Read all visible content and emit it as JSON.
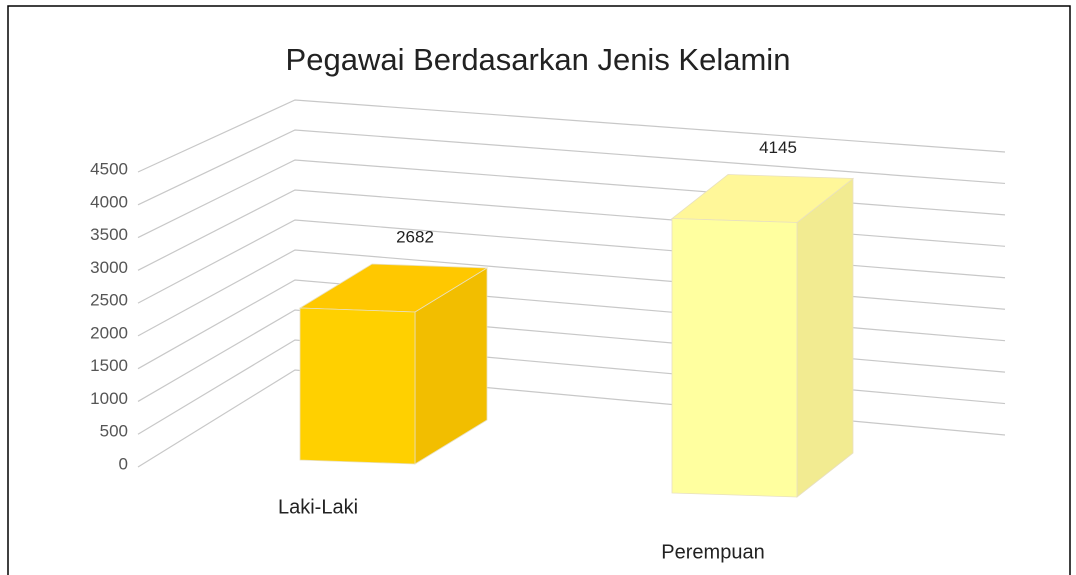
{
  "chart_data": {
    "type": "bar3d",
    "title": "Pegawai Berdasarkan Jenis Kelamin",
    "categories": [
      "Laki-Laki",
      "Perempuan"
    ],
    "values": [
      2682,
      4145
    ],
    "colors": [
      "#ffc800",
      "#fff799"
    ],
    "ylim": [
      0,
      4500
    ],
    "yticks": [
      0,
      500,
      1000,
      1500,
      2000,
      2500,
      3000,
      3500,
      4000,
      4500
    ],
    "grid": true
  }
}
